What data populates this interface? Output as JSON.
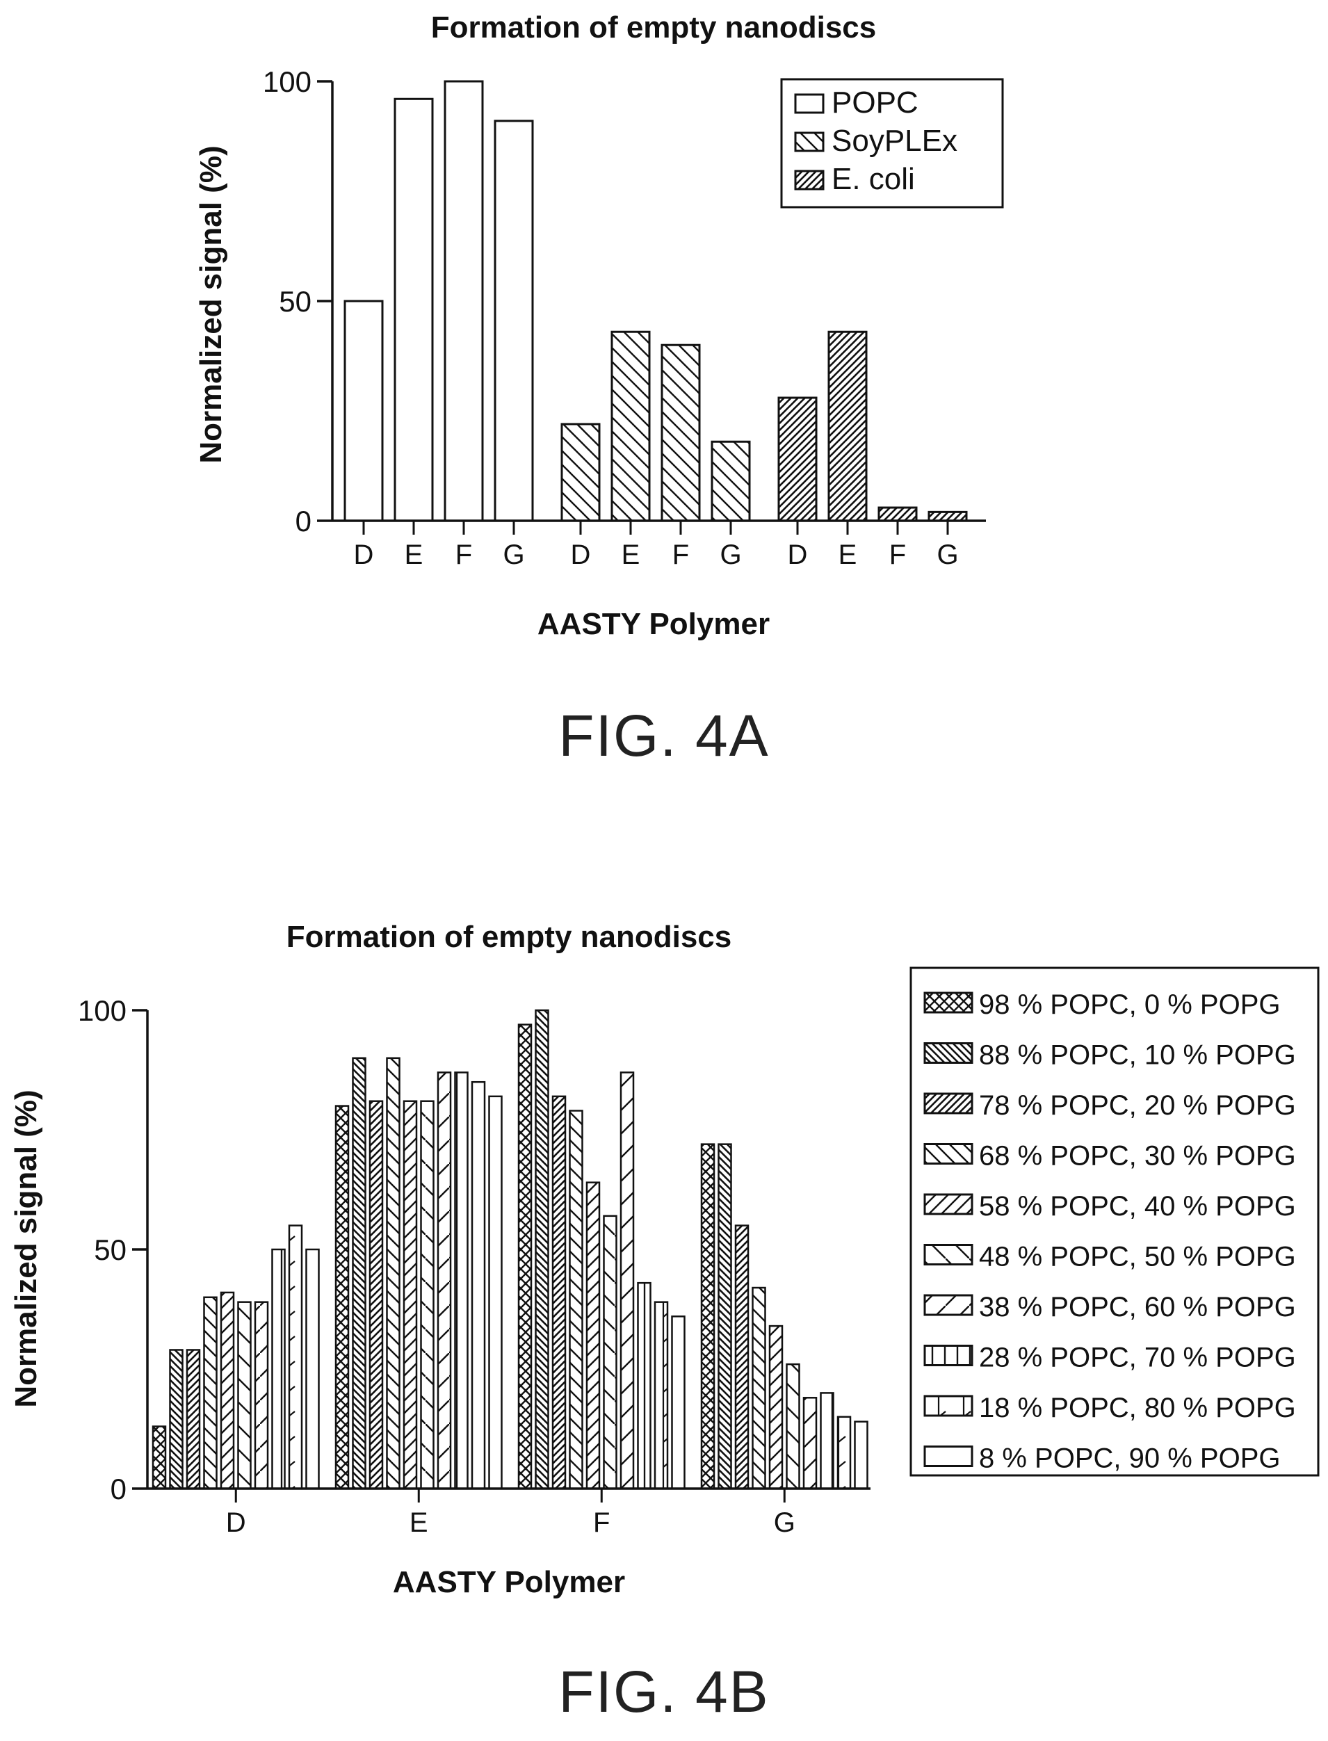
{
  "figures": [
    {
      "label": "FIG. 4A"
    },
    {
      "label": "FIG. 4B"
    }
  ],
  "chart_data": [
    {
      "type": "bar",
      "title": "Formation of empty nanodiscs",
      "xlabel": "AASTY Polymer",
      "ylabel": "Normalized signal (%)",
      "ylim": [
        0,
        100
      ],
      "yticks": [
        0,
        50,
        100
      ],
      "legend": "top-right",
      "groups": [
        {
          "name": "POPC",
          "pattern": "none",
          "categories": [
            "D",
            "E",
            "F",
            "G"
          ],
          "values": [
            50,
            96,
            100,
            91
          ]
        },
        {
          "name": "SoyPLEx",
          "pattern": "diag-back-wide",
          "categories": [
            "D",
            "E",
            "F",
            "G"
          ],
          "values": [
            22,
            43,
            40,
            18
          ]
        },
        {
          "name": "E. coli",
          "pattern": "diag-fwd-dense",
          "categories": [
            "D",
            "E",
            "F",
            "G"
          ],
          "values": [
            28,
            43,
            3,
            2
          ]
        }
      ]
    },
    {
      "type": "bar",
      "title": "Formation of empty nanodiscs",
      "xlabel": "AASTY Polymer",
      "ylabel": "Normalized signal (%)",
      "ylim": [
        0,
        100
      ],
      "yticks": [
        0,
        50,
        100
      ],
      "legend": "right",
      "categories": [
        "D",
        "E",
        "F",
        "G"
      ],
      "series": [
        {
          "name": "98 % POPC, 0 % POPG",
          "pattern": "crosshatch",
          "values": [
            13,
            80,
            97,
            72
          ]
        },
        {
          "name": "88 % POPC, 10 % POPG",
          "pattern": "diag-back-dense",
          "values": [
            29,
            90,
            100,
            72
          ]
        },
        {
          "name": "78 % POPC, 20 % POPG",
          "pattern": "diag-fwd-dense",
          "values": [
            29,
            81,
            82,
            55
          ]
        },
        {
          "name": "68 % POPC, 30 % POPG",
          "pattern": "diag-back-wide",
          "values": [
            40,
            90,
            79,
            42
          ]
        },
        {
          "name": "58 % POPC, 40 % POPG",
          "pattern": "diag-fwd-wide",
          "values": [
            41,
            81,
            64,
            34
          ]
        },
        {
          "name": "48 % POPC, 50 % POPG",
          "pattern": "diag-back-sparse",
          "values": [
            39,
            81,
            57,
            26
          ]
        },
        {
          "name": "38 % POPC, 60 % POPG",
          "pattern": "diag-fwd-sparse",
          "values": [
            39,
            87,
            87,
            19
          ]
        },
        {
          "name": "28 % POPC, 70 % POPG",
          "pattern": "vertical",
          "values": [
            50,
            87,
            43,
            20
          ]
        },
        {
          "name": "18 % POPC, 80 % POPG",
          "pattern": "vertical-tick",
          "values": [
            55,
            85,
            39,
            15
          ]
        },
        {
          "name": "8 % POPC, 90 % POPG",
          "pattern": "none",
          "values": [
            50,
            82,
            36,
            14
          ]
        }
      ]
    }
  ]
}
